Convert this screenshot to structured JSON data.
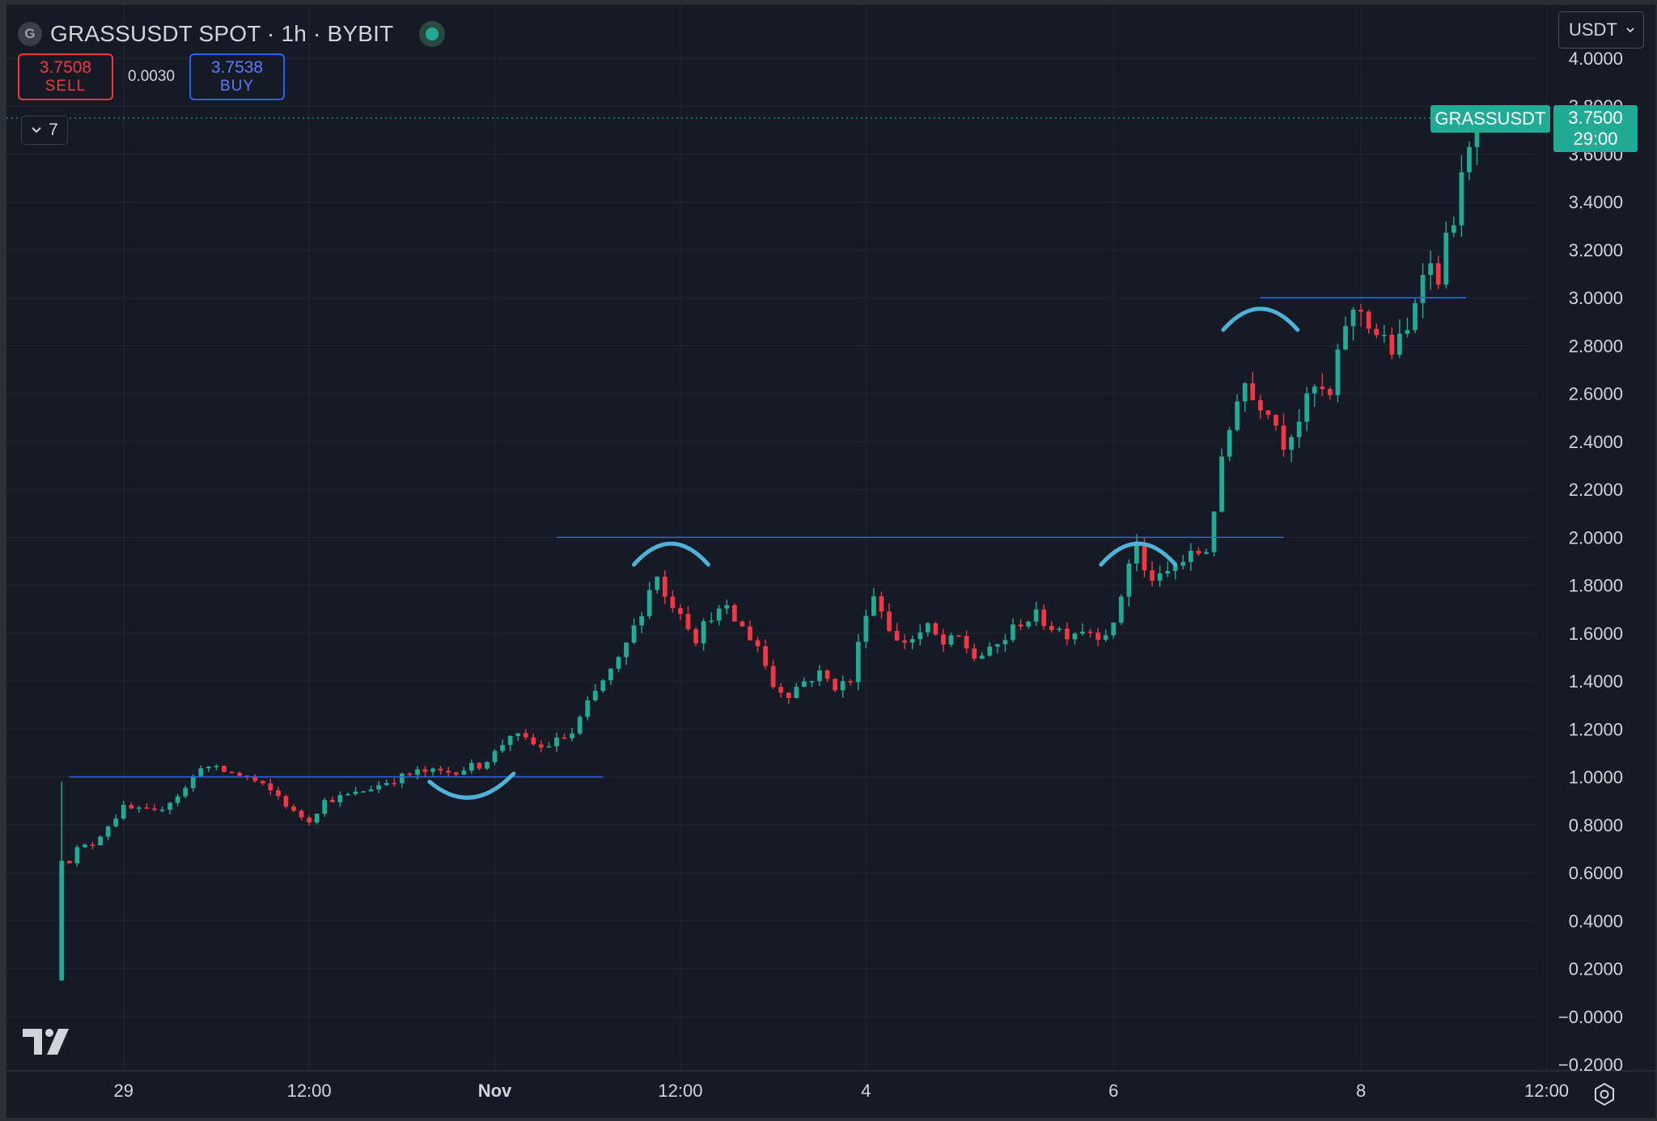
{
  "header": {
    "symbol_icon": "G",
    "title": "GRASSUSDT SPOT · 1h · BYBIT",
    "status_icon": "live-dot-icon"
  },
  "trade": {
    "sell_price": "3.7508",
    "sell_label": "SELL",
    "spread": "0.0030",
    "buy_price": "3.7538",
    "buy_label": "BUY"
  },
  "indicators": {
    "count": "7"
  },
  "currency": {
    "selected": "USDT"
  },
  "last_price": {
    "symbol": "GRASSUSDT",
    "price": "3.7500",
    "countdown": "29:00"
  },
  "colors": {
    "background": "#161a25",
    "grid": "#232733",
    "up": "#22ab94",
    "down": "#f23645",
    "level_line": "#2962ff",
    "annotation": "#4fb3d9",
    "text": "#d1d4dc"
  },
  "chart_data": {
    "type": "candlestick",
    "timeframe": "1h",
    "ylim": [
      -0.2,
      4.0
    ],
    "y_ticks": [
      "4.0000",
      "3.8000",
      "3.6000",
      "3.4000",
      "3.2000",
      "3.0000",
      "2.8000",
      "2.6000",
      "2.4000",
      "2.2000",
      "2.0000",
      "1.8000",
      "1.6000",
      "1.4000",
      "1.2000",
      "1.0000",
      "0.8000",
      "0.6000",
      "0.4000",
      "0.2000",
      "−0.0000",
      "−0.2000"
    ],
    "x_ticks": [
      {
        "label": "29",
        "hour": 4,
        "bold": false
      },
      {
        "label": "12:00",
        "hour": 16,
        "bold": false
      },
      {
        "label": "Nov",
        "hour": 28,
        "bold": true
      },
      {
        "label": "12:00",
        "hour": 40,
        "bold": false
      },
      {
        "label": "4",
        "hour": 52,
        "bold": false
      },
      {
        "label": "6",
        "hour": 68,
        "bold": false
      },
      {
        "label": "8",
        "hour": 84,
        "bold": false
      },
      {
        "label": "12:00",
        "hour": 96,
        "bold": false
      }
    ],
    "price_path": [
      [
        0,
        0.15
      ],
      [
        0.5,
        0.65
      ],
      [
        1,
        0.7
      ],
      [
        2,
        0.72
      ],
      [
        3,
        0.8
      ],
      [
        4,
        0.87
      ],
      [
        6,
        0.85
      ],
      [
        8,
        0.95
      ],
      [
        9,
        1.05
      ],
      [
        10,
        1.03
      ],
      [
        12,
        1.0
      ],
      [
        14,
        0.92
      ],
      [
        15,
        0.85
      ],
      [
        16,
        0.82
      ],
      [
        17,
        0.9
      ],
      [
        19,
        0.93
      ],
      [
        21,
        0.98
      ],
      [
        23,
        1.02
      ],
      [
        25,
        1.02
      ],
      [
        27,
        1.05
      ],
      [
        28,
        1.1
      ],
      [
        29,
        1.18
      ],
      [
        30,
        1.15
      ],
      [
        31,
        1.12
      ],
      [
        32,
        1.15
      ],
      [
        33,
        1.18
      ],
      [
        34,
        1.3
      ],
      [
        35,
        1.4
      ],
      [
        36,
        1.48
      ],
      [
        37,
        1.62
      ],
      [
        38,
        1.78
      ],
      [
        38.5,
        1.85
      ],
      [
        39,
        1.75
      ],
      [
        40,
        1.7
      ],
      [
        41,
        1.58
      ],
      [
        42,
        1.68
      ],
      [
        43,
        1.69
      ],
      [
        44,
        1.62
      ],
      [
        45,
        1.55
      ],
      [
        46,
        1.38
      ],
      [
        47,
        1.35
      ],
      [
        48,
        1.4
      ],
      [
        49,
        1.43
      ],
      [
        50,
        1.38
      ],
      [
        51,
        1.4
      ],
      [
        52,
        1.7
      ],
      [
        52.5,
        1.76
      ],
      [
        53,
        1.7
      ],
      [
        54,
        1.56
      ],
      [
        55,
        1.58
      ],
      [
        56,
        1.62
      ],
      [
        57,
        1.55
      ],
      [
        58,
        1.58
      ],
      [
        59,
        1.5
      ],
      [
        60,
        1.52
      ],
      [
        61,
        1.58
      ],
      [
        62,
        1.65
      ],
      [
        63,
        1.67
      ],
      [
        64,
        1.63
      ],
      [
        65,
        1.6
      ],
      [
        66,
        1.62
      ],
      [
        67,
        1.6
      ],
      [
        68,
        1.62
      ],
      [
        69,
        1.9
      ],
      [
        69.5,
        1.97
      ],
      [
        70,
        1.85
      ],
      [
        71,
        1.82
      ],
      [
        72,
        1.88
      ],
      [
        73,
        1.92
      ],
      [
        74,
        1.95
      ],
      [
        75,
        2.3
      ],
      [
        76,
        2.6
      ],
      [
        76.5,
        2.65
      ],
      [
        77,
        2.58
      ],
      [
        78,
        2.55
      ],
      [
        79,
        2.4
      ],
      [
        80,
        2.5
      ],
      [
        81,
        2.62
      ],
      [
        82,
        2.58
      ],
      [
        83,
        2.9
      ],
      [
        84,
        2.95
      ],
      [
        85,
        2.85
      ],
      [
        86,
        2.78
      ],
      [
        87,
        2.85
      ],
      [
        88,
        3.15
      ],
      [
        89,
        3.1
      ],
      [
        90,
        3.35
      ],
      [
        91,
        3.6
      ],
      [
        91.7,
        3.75
      ]
    ],
    "x_range_hours": [
      -2,
      100
    ],
    "levels": [
      {
        "price": 1.0,
        "from_hour": 0.5,
        "to_hour": 35
      },
      {
        "price": 2.0,
        "from_hour": 32,
        "to_hour": 79
      },
      {
        "price": 3.0,
        "from_hour": 77.5,
        "to_hour": 90.8
      }
    ],
    "annotations": [
      {
        "shape": "smile-arc",
        "hour": 26.5,
        "price": 0.98
      },
      {
        "shape": "cap-arc",
        "hour": 39.4,
        "price": 1.92
      },
      {
        "shape": "cap-arc",
        "hour": 69.6,
        "price": 1.92
      },
      {
        "shape": "cap-arc",
        "hour": 77.5,
        "price": 2.9
      }
    ]
  }
}
